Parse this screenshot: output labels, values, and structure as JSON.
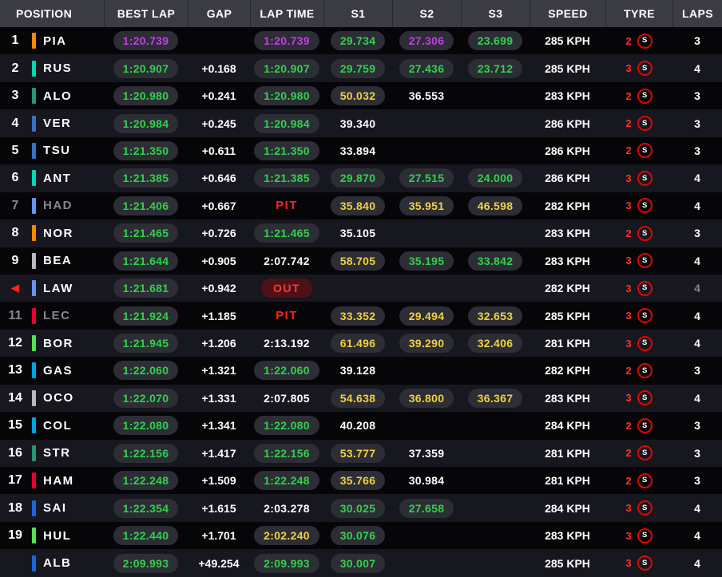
{
  "colors": {
    "purple": "#c43ce8",
    "green": "#2fd24a",
    "yellow": "#efd23d",
    "red": "#ff2020",
    "dim": "#86868f",
    "header_bg": "#3b3b44",
    "pill_bg": "#2d2d36",
    "tyre_ring": "#e10600"
  },
  "header": {
    "columns": [
      "POSITION",
      "BEST LAP",
      "GAP",
      "LAP TIME",
      "S1",
      "S2",
      "S3",
      "SPEED",
      "TYRE",
      "LAPS"
    ]
  },
  "rows": [
    {
      "pos": "1",
      "arrow": false,
      "dim": false,
      "team": "#ff8700",
      "driver": "PIA",
      "best": {
        "t": "1:20.739",
        "c": "purple"
      },
      "gap": "",
      "lap": {
        "t": "1:20.739",
        "c": "purple"
      },
      "s1": {
        "t": "29.734",
        "c": "green"
      },
      "s2": {
        "t": "27.306",
        "c": "purple"
      },
      "s3": {
        "t": "23.699",
        "c": "green"
      },
      "speed": "285 KPH",
      "stops": "2",
      "compound": "S",
      "laps": "3",
      "laps_dim": false
    },
    {
      "pos": "2",
      "arrow": false,
      "dim": false,
      "team": "#00d7b6",
      "driver": "RUS",
      "best": {
        "t": "1:20.907",
        "c": "green"
      },
      "gap": "+0.168",
      "lap": {
        "t": "1:20.907",
        "c": "green"
      },
      "s1": {
        "t": "29.759",
        "c": "green"
      },
      "s2": {
        "t": "27.436",
        "c": "green"
      },
      "s3": {
        "t": "23.712",
        "c": "green"
      },
      "speed": "285 KPH",
      "stops": "3",
      "compound": "S",
      "laps": "4",
      "laps_dim": false
    },
    {
      "pos": "3",
      "arrow": false,
      "dim": false,
      "team": "#229971",
      "driver": "ALO",
      "best": {
        "t": "1:20.980",
        "c": "green"
      },
      "gap": "+0.241",
      "lap": {
        "t": "1:20.980",
        "c": "green"
      },
      "s1": {
        "t": "50.032",
        "c": "yellow"
      },
      "s2": {
        "t": "36.553",
        "c": "white"
      },
      "s3": null,
      "speed": "283 KPH",
      "stops": "2",
      "compound": "S",
      "laps": "3",
      "laps_dim": false
    },
    {
      "pos": "4",
      "arrow": false,
      "dim": false,
      "team": "#3671c6",
      "driver": "VER",
      "best": {
        "t": "1:20.984",
        "c": "green"
      },
      "gap": "+0.245",
      "lap": {
        "t": "1:20.984",
        "c": "green"
      },
      "s1": {
        "t": "39.340",
        "c": "white"
      },
      "s2": null,
      "s3": null,
      "speed": "286 KPH",
      "stops": "2",
      "compound": "S",
      "laps": "3",
      "laps_dim": false
    },
    {
      "pos": "5",
      "arrow": false,
      "dim": false,
      "team": "#3671c6",
      "driver": "TSU",
      "best": {
        "t": "1:21.350",
        "c": "green"
      },
      "gap": "+0.611",
      "lap": {
        "t": "1:21.350",
        "c": "green"
      },
      "s1": {
        "t": "33.894",
        "c": "white"
      },
      "s2": null,
      "s3": null,
      "speed": "286 KPH",
      "stops": "2",
      "compound": "S",
      "laps": "3",
      "laps_dim": false
    },
    {
      "pos": "6",
      "arrow": false,
      "dim": false,
      "team": "#00d7b6",
      "driver": "ANT",
      "best": {
        "t": "1:21.385",
        "c": "green"
      },
      "gap": "+0.646",
      "lap": {
        "t": "1:21.385",
        "c": "green"
      },
      "s1": {
        "t": "29.870",
        "c": "green"
      },
      "s2": {
        "t": "27.515",
        "c": "green"
      },
      "s3": {
        "t": "24.000",
        "c": "green"
      },
      "speed": "286 KPH",
      "stops": "3",
      "compound": "S",
      "laps": "4",
      "laps_dim": false
    },
    {
      "pos": "7",
      "arrow": false,
      "dim": true,
      "team": "#6692ff",
      "driver": "HAD",
      "best": {
        "t": "1:21.406",
        "c": "green"
      },
      "gap": "+0.667",
      "lap": {
        "t": "PIT",
        "c": "pit"
      },
      "s1": {
        "t": "35.840",
        "c": "yellow"
      },
      "s2": {
        "t": "35.951",
        "c": "yellow"
      },
      "s3": {
        "t": "46.598",
        "c": "yellow"
      },
      "speed": "282 KPH",
      "stops": "3",
      "compound": "S",
      "laps": "4",
      "laps_dim": false
    },
    {
      "pos": "8",
      "arrow": false,
      "dim": false,
      "team": "#ff8700",
      "driver": "NOR",
      "best": {
        "t": "1:21.465",
        "c": "green"
      },
      "gap": "+0.726",
      "lap": {
        "t": "1:21.465",
        "c": "green"
      },
      "s1": {
        "t": "35.105",
        "c": "white"
      },
      "s2": null,
      "s3": null,
      "speed": "283 KPH",
      "stops": "2",
      "compound": "S",
      "laps": "3",
      "laps_dim": false
    },
    {
      "pos": "9",
      "arrow": false,
      "dim": false,
      "team": "#b6babd",
      "driver": "BEA",
      "best": {
        "t": "1:21.644",
        "c": "green"
      },
      "gap": "+0.905",
      "lap": {
        "t": "2:07.742",
        "c": "white"
      },
      "s1": {
        "t": "58.705",
        "c": "yellow"
      },
      "s2": {
        "t": "35.195",
        "c": "green"
      },
      "s3": {
        "t": "33.842",
        "c": "green"
      },
      "speed": "283 KPH",
      "stops": "3",
      "compound": "S",
      "laps": "4",
      "laps_dim": false
    },
    {
      "pos": "",
      "arrow": true,
      "dim": false,
      "team": "#6692ff",
      "driver": "LAW",
      "best": {
        "t": "1:21.681",
        "c": "green"
      },
      "gap": "+0.942",
      "lap": {
        "t": "OUT",
        "c": "out"
      },
      "s1": null,
      "s2": null,
      "s3": null,
      "speed": "282 KPH",
      "stops": "3",
      "compound": "S",
      "laps": "4",
      "laps_dim": true
    },
    {
      "pos": "11",
      "arrow": false,
      "dim": true,
      "team": "#e8002d",
      "driver": "LEC",
      "best": {
        "t": "1:21.924",
        "c": "green"
      },
      "gap": "+1.185",
      "lap": {
        "t": "PIT",
        "c": "pit"
      },
      "s1": {
        "t": "33.352",
        "c": "yellow"
      },
      "s2": {
        "t": "29.494",
        "c": "yellow"
      },
      "s3": {
        "t": "32.653",
        "c": "yellow"
      },
      "speed": "285 KPH",
      "stops": "3",
      "compound": "S",
      "laps": "4",
      "laps_dim": false
    },
    {
      "pos": "12",
      "arrow": false,
      "dim": false,
      "team": "#52e252",
      "driver": "BOR",
      "best": {
        "t": "1:21.945",
        "c": "green"
      },
      "gap": "+1.206",
      "lap": {
        "t": "2:13.192",
        "c": "white"
      },
      "s1": {
        "t": "61.496",
        "c": "yellow"
      },
      "s2": {
        "t": "39.290",
        "c": "yellow"
      },
      "s3": {
        "t": "32.406",
        "c": "yellow"
      },
      "speed": "281 KPH",
      "stops": "3",
      "compound": "S",
      "laps": "4",
      "laps_dim": false
    },
    {
      "pos": "13",
      "arrow": false,
      "dim": false,
      "team": "#00a1e8",
      "driver": "GAS",
      "best": {
        "t": "1:22.060",
        "c": "green"
      },
      "gap": "+1.321",
      "lap": {
        "t": "1:22.060",
        "c": "green"
      },
      "s1": {
        "t": "39.128",
        "c": "white"
      },
      "s2": null,
      "s3": null,
      "speed": "282 KPH",
      "stops": "2",
      "compound": "S",
      "laps": "3",
      "laps_dim": false
    },
    {
      "pos": "14",
      "arrow": false,
      "dim": false,
      "team": "#b6babd",
      "driver": "OCO",
      "best": {
        "t": "1:22.070",
        "c": "green"
      },
      "gap": "+1.331",
      "lap": {
        "t": "2:07.805",
        "c": "white"
      },
      "s1": {
        "t": "54.638",
        "c": "yellow"
      },
      "s2": {
        "t": "36.800",
        "c": "yellow"
      },
      "s3": {
        "t": "36.367",
        "c": "yellow"
      },
      "speed": "283 KPH",
      "stops": "3",
      "compound": "S",
      "laps": "4",
      "laps_dim": false
    },
    {
      "pos": "15",
      "arrow": false,
      "dim": false,
      "team": "#00a1e8",
      "driver": "COL",
      "best": {
        "t": "1:22.080",
        "c": "green"
      },
      "gap": "+1.341",
      "lap": {
        "t": "1:22.080",
        "c": "green"
      },
      "s1": {
        "t": "40.208",
        "c": "white"
      },
      "s2": null,
      "s3": null,
      "speed": "284 KPH",
      "stops": "2",
      "compound": "S",
      "laps": "3",
      "laps_dim": false
    },
    {
      "pos": "16",
      "arrow": false,
      "dim": false,
      "team": "#229971",
      "driver": "STR",
      "best": {
        "t": "1:22.156",
        "c": "green"
      },
      "gap": "+1.417",
      "lap": {
        "t": "1:22.156",
        "c": "green"
      },
      "s1": {
        "t": "53.777",
        "c": "yellow"
      },
      "s2": {
        "t": "37.359",
        "c": "white"
      },
      "s3": null,
      "speed": "281 KPH",
      "stops": "2",
      "compound": "S",
      "laps": "3",
      "laps_dim": false
    },
    {
      "pos": "17",
      "arrow": false,
      "dim": false,
      "team": "#e8002d",
      "driver": "HAM",
      "best": {
        "t": "1:22.248",
        "c": "green"
      },
      "gap": "+1.509",
      "lap": {
        "t": "1:22.248",
        "c": "green"
      },
      "s1": {
        "t": "35.766",
        "c": "yellow"
      },
      "s2": {
        "t": "30.984",
        "c": "white"
      },
      "s3": null,
      "speed": "281 KPH",
      "stops": "2",
      "compound": "S",
      "laps": "3",
      "laps_dim": false
    },
    {
      "pos": "18",
      "arrow": false,
      "dim": false,
      "team": "#1868db",
      "driver": "SAI",
      "best": {
        "t": "1:22.354",
        "c": "green"
      },
      "gap": "+1.615",
      "lap": {
        "t": "2:03.278",
        "c": "white"
      },
      "s1": {
        "t": "30.025",
        "c": "green"
      },
      "s2": {
        "t": "27.658",
        "c": "green"
      },
      "s3": null,
      "speed": "284 KPH",
      "stops": "3",
      "compound": "S",
      "laps": "4",
      "laps_dim": false
    },
    {
      "pos": "19",
      "arrow": false,
      "dim": false,
      "team": "#52e252",
      "driver": "HUL",
      "best": {
        "t": "1:22.440",
        "c": "green"
      },
      "gap": "+1.701",
      "lap": {
        "t": "2:02.240",
        "c": "yellow"
      },
      "s1": {
        "t": "30.076",
        "c": "green"
      },
      "s2": null,
      "s3": null,
      "speed": "283 KPH",
      "stops": "3",
      "compound": "S",
      "laps": "4",
      "laps_dim": false
    },
    {
      "pos": "",
      "arrow": false,
      "dim": false,
      "team": "#1868db",
      "driver": "ALB",
      "best": {
        "t": "2:09.993",
        "c": "green"
      },
      "gap": "+49.254",
      "lap": {
        "t": "2:09.993",
        "c": "green"
      },
      "s1": {
        "t": "30.007",
        "c": "green"
      },
      "s2": null,
      "s3": null,
      "speed": "285 KPH",
      "stops": "3",
      "compound": "S",
      "laps": "4",
      "laps_dim": false
    }
  ]
}
